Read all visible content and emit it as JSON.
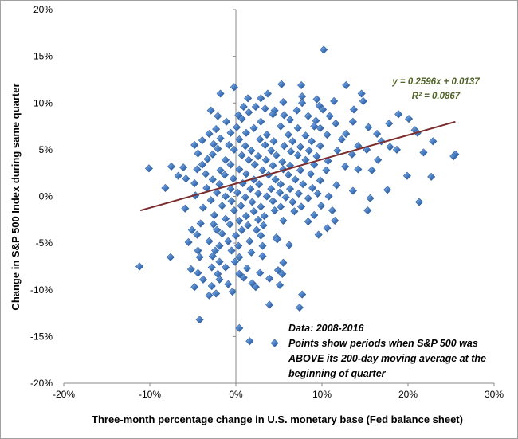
{
  "chart_data": {
    "type": "scatter",
    "xlabel": "Three-month percentage change in U.S. monetary base (Fed balance sheet)",
    "ylabel": "Change in S&P 500 Index during same quarter",
    "xlim": [
      -0.2,
      0.3
    ],
    "ylim": [
      -0.2,
      0.2
    ],
    "x_ticks": [
      -0.2,
      -0.1,
      0.0,
      0.1,
      0.2,
      0.3
    ],
    "x_tick_labels": [
      "-20%",
      "-10%",
      "0%",
      "10%",
      "20%",
      "30%"
    ],
    "y_ticks": [
      -0.2,
      -0.15,
      -0.1,
      -0.05,
      0.0,
      0.05,
      0.1,
      0.15,
      0.2
    ],
    "y_tick_labels": [
      "-20%",
      "-15%",
      "-10%",
      "-5%",
      "0%",
      "5%",
      "10%",
      "15%",
      "20%"
    ],
    "grid": false,
    "marker_color": "#4a7fc4",
    "trendline": {
      "slope": 0.2596,
      "intercept": 0.0137,
      "x_range": [
        -0.111,
        0.255
      ],
      "color": "#7b2c2c"
    },
    "equation_lines": [
      "y = 0.2596x + 0.0137",
      "R² = 0.0867"
    ],
    "annotation_lines": [
      "Data: 2008-2016",
      "Points show periods when S&P 500  was",
      "ABOVE its 200-day moving average at the",
      "beginning of quarter"
    ],
    "points": [
      [
        0.102,
        0.157
      ],
      [
        0.128,
        0.119
      ],
      [
        0.053,
        0.12
      ],
      [
        0.076,
        0.119
      ],
      [
        0.146,
        0.11
      ],
      [
        0.029,
        0.105
      ],
      [
        0.077,
        0.107
      ],
      [
        -0.018,
        0.11
      ],
      [
        -0.002,
        0.117
      ],
      [
        0.014,
        0.105
      ],
      [
        0.037,
        0.11
      ],
      [
        0.094,
        0.104
      ],
      [
        0.114,
        0.102
      ],
      [
        0.148,
        0.102
      ],
      [
        0.009,
        0.096
      ],
      [
        0.023,
        0.096
      ],
      [
        0.055,
        0.101
      ],
      [
        0.077,
        0.1
      ],
      [
        0.097,
        0.097
      ],
      [
        -0.029,
        0.092
      ],
      [
        0.015,
        0.09
      ],
      [
        0.034,
        0.094
      ],
      [
        0.045,
        0.092
      ],
      [
        0.071,
        0.092
      ],
      [
        0.101,
        0.093
      ],
      [
        0.137,
        0.093
      ],
      [
        0.189,
        0.088
      ],
      [
        -0.021,
        0.086
      ],
      [
        0.003,
        0.087
      ],
      [
        0.043,
        0.088
      ],
      [
        0.056,
        0.087
      ],
      [
        0.084,
        0.086
      ],
      [
        0.109,
        0.086
      ],
      [
        -0.011,
        0.08
      ],
      [
        0.007,
        0.083
      ],
      [
        0.029,
        0.08
      ],
      [
        0.063,
        0.082
      ],
      [
        0.093,
        0.081
      ],
      [
        0.116,
        0.078
      ],
      [
        0.178,
        0.078
      ],
      [
        0.136,
        0.08
      ],
      [
        0.201,
        0.083
      ],
      [
        -0.023,
        0.072
      ],
      [
        0.001,
        0.074
      ],
      [
        0.021,
        0.073
      ],
      [
        0.052,
        0.075
      ],
      [
        0.072,
        0.073
      ],
      [
        0.091,
        0.075
      ],
      [
        0.098,
        0.073
      ],
      [
        0.154,
        0.074
      ],
      [
        0.208,
        0.071
      ],
      [
        0.211,
        0.068
      ],
      [
        -0.031,
        0.067
      ],
      [
        -0.006,
        0.068
      ],
      [
        0.012,
        0.068
      ],
      [
        0.036,
        0.066
      ],
      [
        0.061,
        0.066
      ],
      [
        0.081,
        0.065
      ],
      [
        0.106,
        0.066
      ],
      [
        0.128,
        0.067
      ],
      [
        0.164,
        0.067
      ],
      [
        -0.039,
        0.06
      ],
      [
        -0.018,
        0.062
      ],
      [
        0.004,
        0.061
      ],
      [
        0.028,
        0.061
      ],
      [
        0.044,
        0.059
      ],
      [
        0.066,
        0.059
      ],
      [
        0.088,
        0.059
      ],
      [
        0.123,
        0.061
      ],
      [
        0.169,
        0.059
      ],
      [
        0.229,
        0.059
      ],
      [
        -0.048,
        0.055
      ],
      [
        -0.026,
        0.056
      ],
      [
        -0.008,
        0.055
      ],
      [
        0.011,
        0.054
      ],
      [
        0.034,
        0.055
      ],
      [
        0.056,
        0.054
      ],
      [
        0.075,
        0.053
      ],
      [
        0.098,
        0.054
      ],
      [
        0.142,
        0.054
      ],
      [
        0.179,
        0.053
      ],
      [
        0.255,
        0.045
      ],
      [
        -0.021,
        0.051
      ],
      [
        -0.002,
        0.05
      ],
      [
        0.018,
        0.049
      ],
      [
        0.041,
        0.049
      ],
      [
        0.064,
        0.048
      ],
      [
        0.085,
        0.049
      ],
      [
        0.118,
        0.049
      ],
      [
        0.152,
        0.05
      ],
      [
        0.187,
        0.05
      ],
      [
        0.218,
        0.047
      ],
      [
        -0.044,
        0.046
      ],
      [
        -0.027,
        0.045
      ],
      [
        0.007,
        0.044
      ],
      [
        0.026,
        0.043
      ],
      [
        0.047,
        0.044
      ],
      [
        0.072,
        0.044
      ],
      [
        0.094,
        0.043
      ],
      [
        0.135,
        0.045
      ],
      [
        0.253,
        0.043
      ],
      [
        -0.033,
        0.04
      ],
      [
        -0.012,
        0.039
      ],
      [
        0.015,
        0.039
      ],
      [
        0.035,
        0.039
      ],
      [
        0.054,
        0.037
      ],
      [
        0.081,
        0.039
      ],
      [
        0.107,
        0.038
      ],
      [
        0.165,
        0.039
      ],
      [
        -0.039,
        0.034
      ],
      [
        -0.006,
        0.034
      ],
      [
        0.022,
        0.034
      ],
      [
        0.043,
        0.033
      ],
      [
        0.063,
        0.033
      ],
      [
        0.091,
        0.034
      ],
      [
        0.127,
        0.032
      ],
      [
        -0.075,
        0.032
      ],
      [
        -0.101,
        0.03
      ],
      [
        -0.061,
        0.031
      ],
      [
        -0.045,
        0.029
      ],
      [
        -0.018,
        0.028
      ],
      [
        0.004,
        0.029
      ],
      [
        0.031,
        0.028
      ],
      [
        0.055,
        0.029
      ],
      [
        0.075,
        0.028
      ],
      [
        0.105,
        0.028
      ],
      [
        0.142,
        0.029
      ],
      [
        0.158,
        0.028
      ],
      [
        -0.035,
        0.024
      ],
      [
        -0.013,
        0.023
      ],
      [
        0.012,
        0.024
      ],
      [
        0.038,
        0.023
      ],
      [
        0.061,
        0.023
      ],
      [
        0.087,
        0.024
      ],
      [
        0.199,
        0.022
      ],
      [
        -0.067,
        0.022
      ],
      [
        -0.058,
        0.019
      ],
      [
        -0.027,
        0.018
      ],
      [
        -0.003,
        0.019
      ],
      [
        0.021,
        0.018
      ],
      [
        0.046,
        0.018
      ],
      [
        0.069,
        0.018
      ],
      [
        0.098,
        0.017
      ],
      [
        0.227,
        0.021
      ],
      [
        -0.048,
        0.014
      ],
      [
        -0.019,
        0.013
      ],
      [
        0.008,
        0.014
      ],
      [
        0.027,
        0.013
      ],
      [
        0.052,
        0.013
      ],
      [
        0.078,
        0.013
      ],
      [
        0.117,
        0.012
      ],
      [
        -0.034,
        0.009
      ],
      [
        -0.006,
        0.008
      ],
      [
        0.017,
        0.008
      ],
      [
        0.041,
        0.008
      ],
      [
        0.063,
        0.008
      ],
      [
        0.089,
        0.009
      ],
      [
        0.136,
        0.006
      ],
      [
        0.176,
        0.007
      ],
      [
        -0.082,
        0.009
      ],
      [
        -0.022,
        0.004
      ],
      [
        0.002,
        0.004
      ],
      [
        0.026,
        0.003
      ],
      [
        0.051,
        0.004
      ],
      [
        0.073,
        0.003
      ],
      [
        0.095,
        0.003
      ],
      [
        -0.047,
        0.001
      ],
      [
        -0.012,
        0.0
      ],
      [
        0.011,
        -0.001
      ],
      [
        0.036,
        0.0
      ],
      [
        0.058,
        -0.001
      ],
      [
        0.084,
        -0.002
      ],
      [
        0.108,
        0.0
      ],
      [
        0.156,
        -0.002
      ],
      [
        -0.029,
        -0.004
      ],
      [
        -0.005,
        -0.005
      ],
      [
        0.019,
        -0.006
      ],
      [
        0.043,
        -0.005
      ],
      [
        0.066,
        -0.006
      ],
      [
        0.213,
        -0.006
      ],
      [
        -0.016,
        -0.01
      ],
      [
        0.006,
        -0.01
      ],
      [
        0.029,
        -0.011
      ],
      [
        0.052,
        -0.011
      ],
      [
        0.076,
        -0.011
      ],
      [
        0.099,
        -0.01
      ],
      [
        0.153,
        -0.015
      ],
      [
        -0.059,
        -0.013
      ],
      [
        -0.038,
        -0.012
      ],
      [
        -0.002,
        -0.015
      ],
      [
        0.021,
        -0.016
      ],
      [
        0.045,
        -0.015
      ],
      [
        0.068,
        -0.016
      ],
      [
        0.112,
        -0.015
      ],
      [
        -0.025,
        -0.02
      ],
      [
        0.012,
        -0.021
      ],
      [
        0.033,
        -0.021
      ],
      [
        0.091,
        -0.02
      ],
      [
        -0.012,
        -0.024
      ],
      [
        0.004,
        -0.026
      ],
      [
        0.026,
        -0.025
      ],
      [
        0.055,
        -0.026
      ],
      [
        0.084,
        -0.027
      ],
      [
        0.115,
        -0.026
      ],
      [
        -0.041,
        -0.029
      ],
      [
        -0.026,
        -0.03
      ],
      [
        -0.007,
        -0.03
      ],
      [
        0.014,
        -0.031
      ],
      [
        0.032,
        -0.031
      ],
      [
        0.106,
        -0.034
      ],
      [
        -0.051,
        -0.036
      ],
      [
        -0.022,
        -0.036
      ],
      [
        0.007,
        -0.036
      ],
      [
        0.024,
        -0.036
      ],
      [
        0.047,
        -0.044
      ],
      [
        0.096,
        -0.041
      ],
      [
        -0.045,
        -0.041
      ],
      [
        -0.016,
        -0.04
      ],
      [
        0.0,
        -0.042
      ],
      [
        0.029,
        -0.042
      ],
      [
        0.048,
        -0.046
      ],
      [
        -0.055,
        -0.049
      ],
      [
        -0.031,
        -0.048
      ],
      [
        -0.009,
        -0.048
      ],
      [
        0.016,
        -0.048
      ],
      [
        -0.019,
        -0.053
      ],
      [
        0.003,
        -0.053
      ],
      [
        0.031,
        -0.053
      ],
      [
        0.062,
        -0.052
      ],
      [
        -0.044,
        -0.058
      ],
      [
        -0.024,
        -0.058
      ],
      [
        -0.005,
        -0.058
      ],
      [
        0.018,
        -0.06
      ],
      [
        -0.076,
        -0.065
      ],
      [
        -0.042,
        -0.065
      ],
      [
        -0.027,
        -0.064
      ],
      [
        0.004,
        -0.065
      ],
      [
        0.031,
        -0.064
      ],
      [
        -0.019,
        -0.07
      ],
      [
        -0.001,
        -0.07
      ],
      [
        0.055,
        -0.071
      ],
      [
        -0.112,
        -0.075
      ],
      [
        -0.052,
        -0.078
      ],
      [
        -0.028,
        -0.076
      ],
      [
        -0.012,
        -0.076
      ],
      [
        0.013,
        -0.077
      ],
      [
        0.049,
        -0.079
      ],
      [
        -0.044,
        -0.082
      ],
      [
        -0.021,
        -0.083
      ],
      [
        0.004,
        -0.083
      ],
      [
        0.028,
        -0.082
      ],
      [
        0.054,
        -0.083
      ],
      [
        -0.038,
        -0.089
      ],
      [
        -0.019,
        -0.089
      ],
      [
        0.009,
        -0.087
      ],
      [
        0.039,
        -0.088
      ],
      [
        -0.028,
        -0.096
      ],
      [
        -0.009,
        -0.094
      ],
      [
        0.019,
        -0.093
      ],
      [
        0.051,
        -0.095
      ],
      [
        -0.048,
        -0.097
      ],
      [
        -0.023,
        -0.104
      ],
      [
        -0.004,
        -0.102
      ],
      [
        0.023,
        -0.097
      ],
      [
        0.077,
        -0.105
      ],
      [
        -0.031,
        -0.106
      ],
      [
        0.039,
        -0.116
      ],
      [
        0.074,
        -0.119
      ],
      [
        -0.042,
        -0.132
      ],
      [
        0.004,
        -0.141
      ],
      [
        0.016,
        -0.155
      ],
      [
        0.045,
        -0.157
      ]
    ]
  }
}
